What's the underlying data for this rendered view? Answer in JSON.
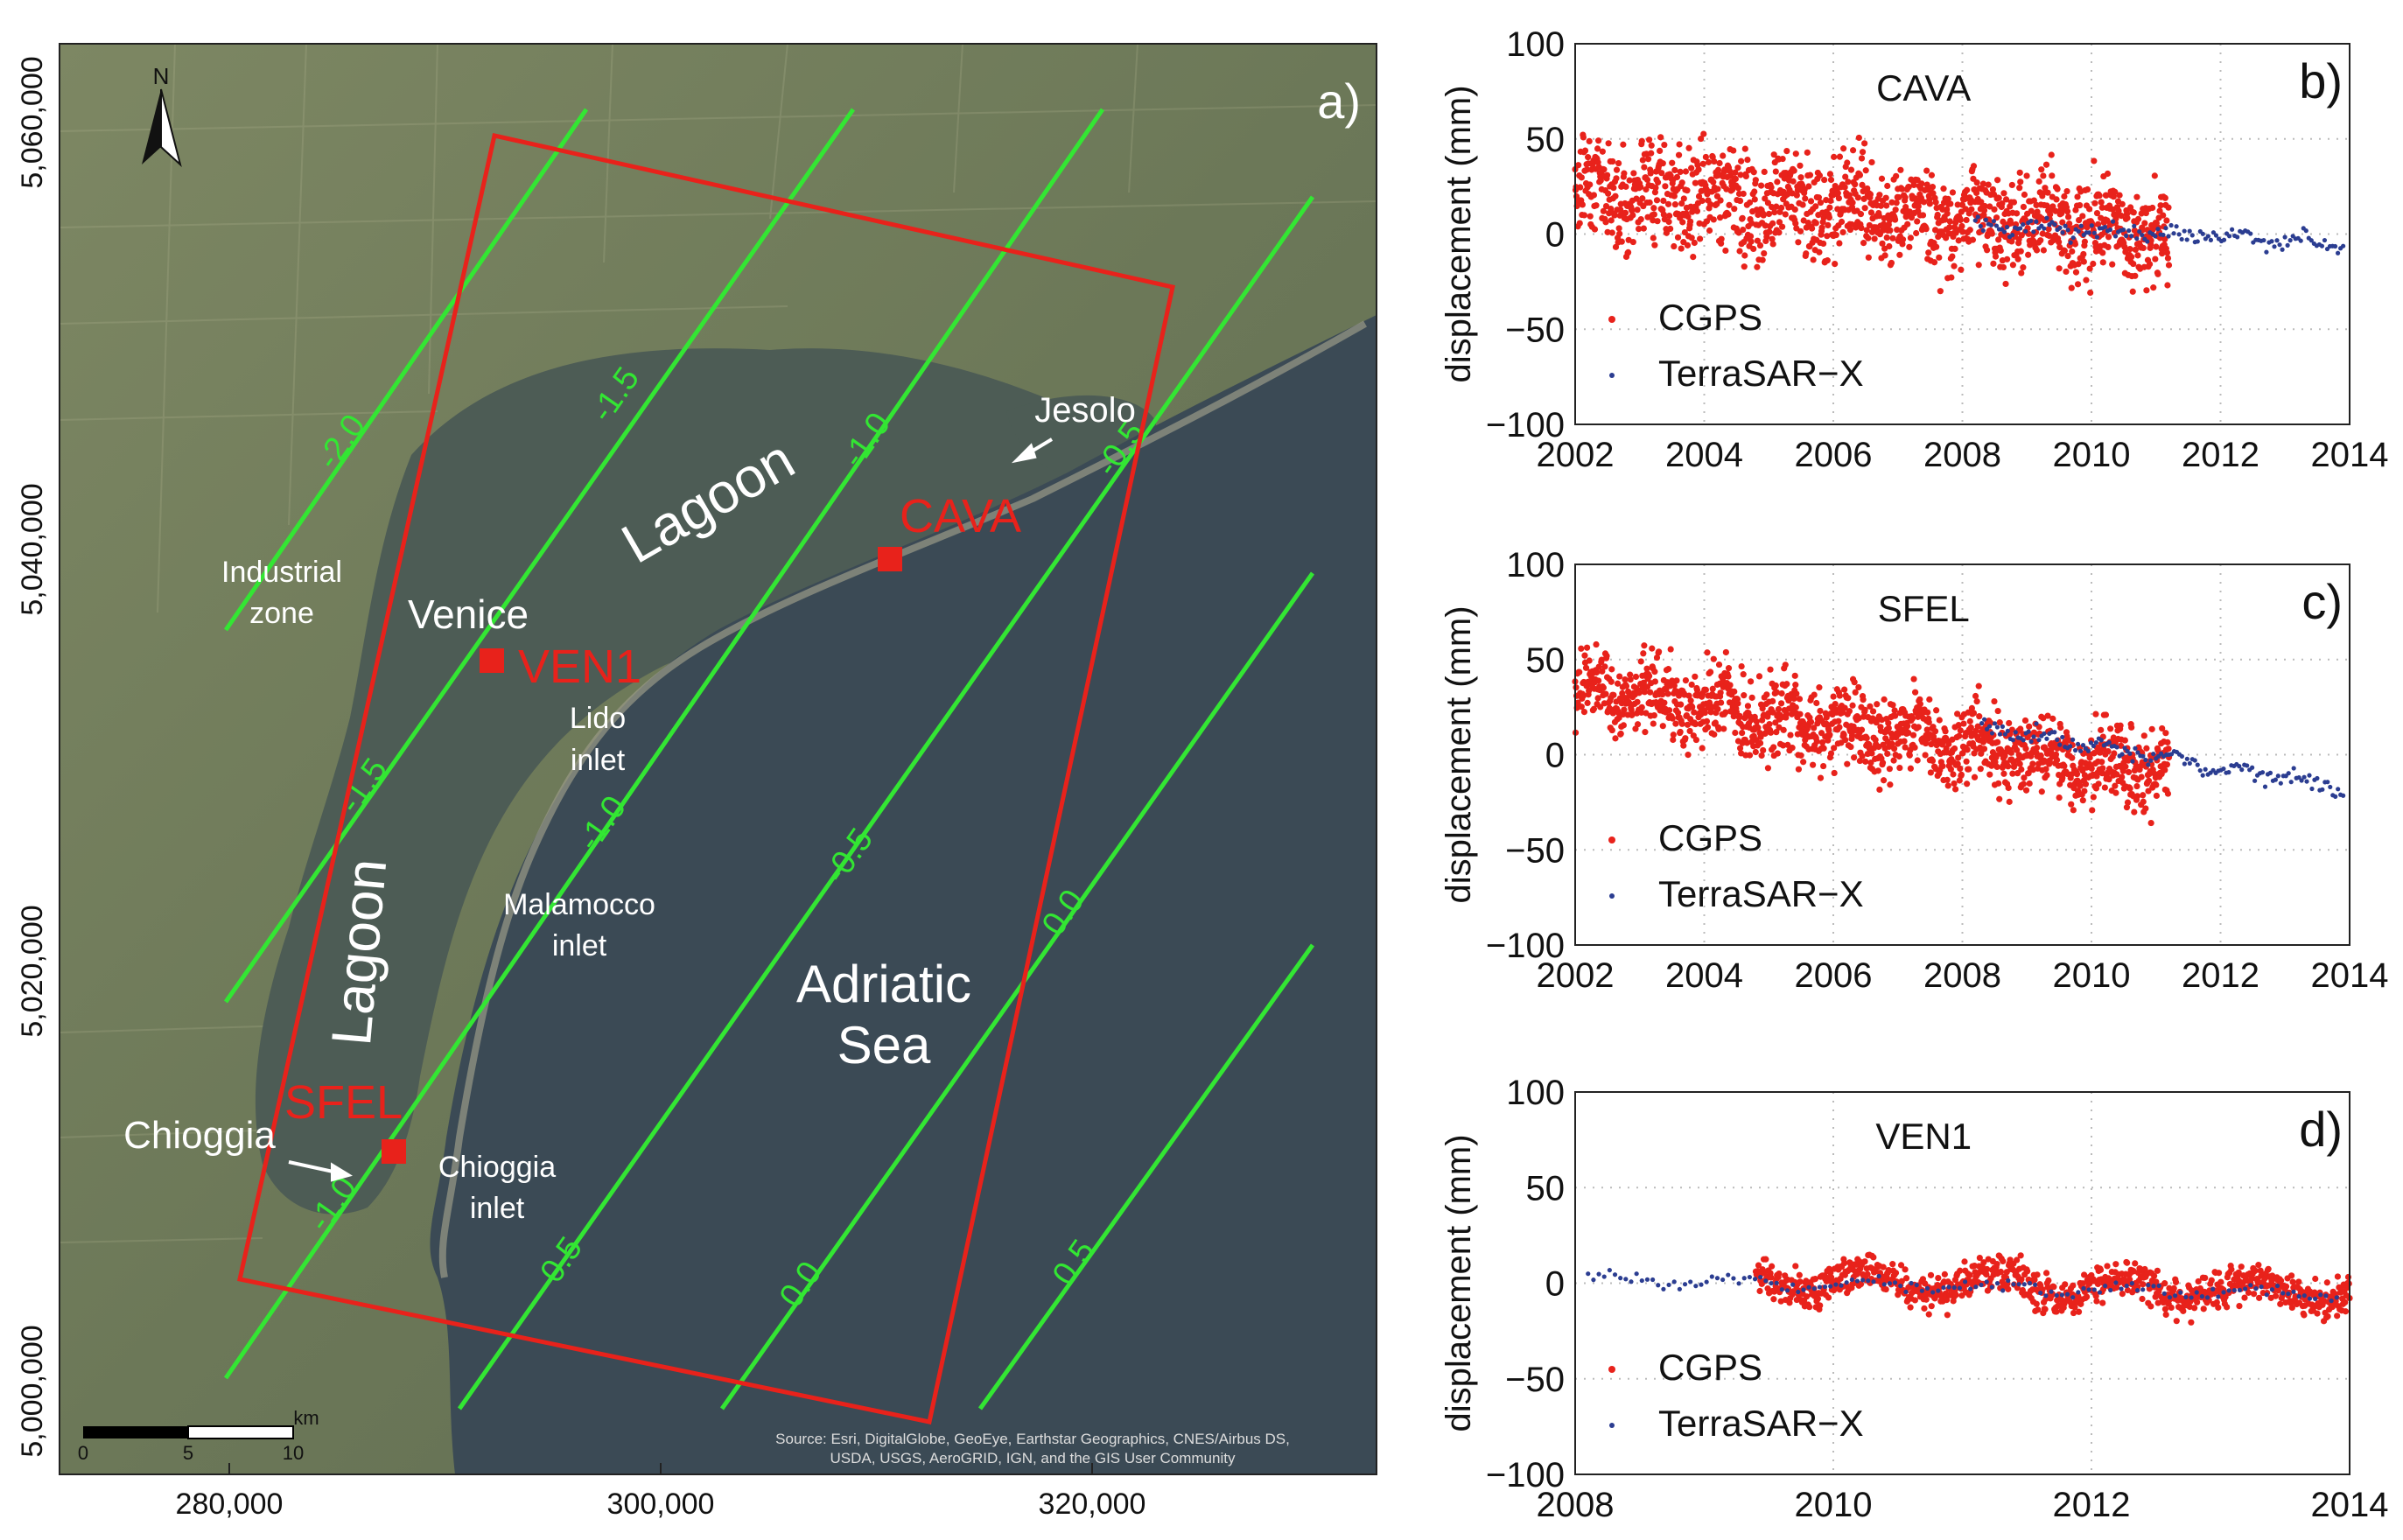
{
  "map": {
    "panel_label": "a)",
    "north_label": "N",
    "x_ticks": [
      "280,000",
      "300,000",
      "320,000"
    ],
    "y_ticks": [
      "5,060,000",
      "5,040,000",
      "5,020,000",
      "5,000,000"
    ],
    "places": {
      "lagoon_north": "Lagoon",
      "lagoon_south": "Lagoon",
      "venice": "Venice",
      "industrial_1": "Industrial",
      "industrial_2": "zone",
      "lido_1": "Lido",
      "lido_2": "inlet",
      "malamocco_1": "Malamocco",
      "malamocco_2": "inlet",
      "chioggia_inlet_1": "Chioggia",
      "chioggia_inlet_2": "inlet",
      "chioggia": "Chioggia",
      "jesolo": "Jesolo",
      "sea_1": "Adriatic",
      "sea_2": "Sea"
    },
    "stations": {
      "cava": "CAVA",
      "ven1": "VEN1",
      "sfel": "SFEL"
    },
    "contour_labels": {
      "c_m20": "-2.0",
      "c_m15a": "-1.5",
      "c_m15b": "-1.5",
      "c_m10a": "-1.0",
      "c_m10b": "-1.0",
      "c_m10c": "-1.0",
      "c_m05a": "-0.5",
      "c_m05b": "-0.5",
      "c_m05c": "-0.5",
      "c_00a": "0.0",
      "c_00b": "0.0",
      "c_05": "0.5"
    },
    "scalebar": {
      "unit": "km",
      "ticks": [
        "0",
        "5",
        "10"
      ]
    },
    "source_1": "Source: Esri, DigitalGlobe, GeoEye, Earthstar Geographics, CNES/Airbus DS,",
    "source_2": "USDA, USGS, AeroGRID, IGN, and the GIS User Community",
    "colors": {
      "sea": "#3b4a55",
      "land": "#6e7a5c",
      "lagoon": "#4e5e58",
      "contour": "#33e633",
      "frame": "#e8221b"
    }
  },
  "chart_data": [
    {
      "type": "scatter",
      "panel_label": "b)",
      "title": "CAVA",
      "ylabel": "displacement (mm)",
      "xlim": [
        2002,
        2014
      ],
      "ylim": [
        -100,
        100
      ],
      "x_ticks": [
        "2002",
        "2004",
        "2006",
        "2008",
        "2010",
        "2012",
        "2014"
      ],
      "y_ticks": [
        "100",
        "50",
        "0",
        "−50",
        "−100"
      ],
      "legend": [
        "CGPS",
        "TerraSAR−X"
      ],
      "series": [
        {
          "name": "CGPS",
          "color": "#e8221b",
          "x_start": 2002.0,
          "x_end": 2011.2,
          "y_start": 25,
          "y_end": 0,
          "noise": 18
        },
        {
          "name": "TerraSAR−X",
          "color": "#2b3d91",
          "x_start": 2008.2,
          "x_end": 2013.9,
          "y_start": 5,
          "y_end": -5,
          "noise": 3
        }
      ]
    },
    {
      "type": "scatter",
      "panel_label": "c)",
      "title": "SFEL",
      "ylabel": "displacement (mm)",
      "xlim": [
        2002,
        2014
      ],
      "ylim": [
        -100,
        100
      ],
      "x_ticks": [
        "2002",
        "2004",
        "2006",
        "2008",
        "2010",
        "2012",
        "2014"
      ],
      "y_ticks": [
        "100",
        "50",
        "0",
        "−50",
        "−100"
      ],
      "legend": [
        "CGPS",
        "TerraSAR−X"
      ],
      "series": [
        {
          "name": "CGPS",
          "color": "#e8221b",
          "x_start": 2002.0,
          "x_end": 2011.2,
          "y_start": 35,
          "y_end": -10,
          "noise": 15
        },
        {
          "name": "TerraSAR−X",
          "color": "#2b3d91",
          "x_start": 2008.3,
          "x_end": 2013.9,
          "y_start": 15,
          "y_end": -18,
          "noise": 3
        }
      ]
    },
    {
      "type": "scatter",
      "panel_label": "d)",
      "title": "VEN1",
      "ylabel": "displacement (mm)",
      "xlim": [
        2008,
        2014
      ],
      "ylim": [
        -100,
        100
      ],
      "x_ticks": [
        "2008",
        "2010",
        "2012",
        "2014"
      ],
      "y_ticks": [
        "100",
        "50",
        "0",
        "−50",
        "−100"
      ],
      "legend": [
        "CGPS",
        "TerraSAR−X"
      ],
      "series": [
        {
          "name": "CGPS",
          "color": "#e8221b",
          "x_start": 2009.4,
          "x_end": 2014.0,
          "y_start": 2,
          "y_end": -5,
          "noise": 7
        },
        {
          "name": "TerraSAR−X",
          "color": "#2b3d91",
          "x_start": 2008.1,
          "x_end": 2013.9,
          "y_start": 2,
          "y_end": -6,
          "noise": 2
        }
      ]
    }
  ]
}
